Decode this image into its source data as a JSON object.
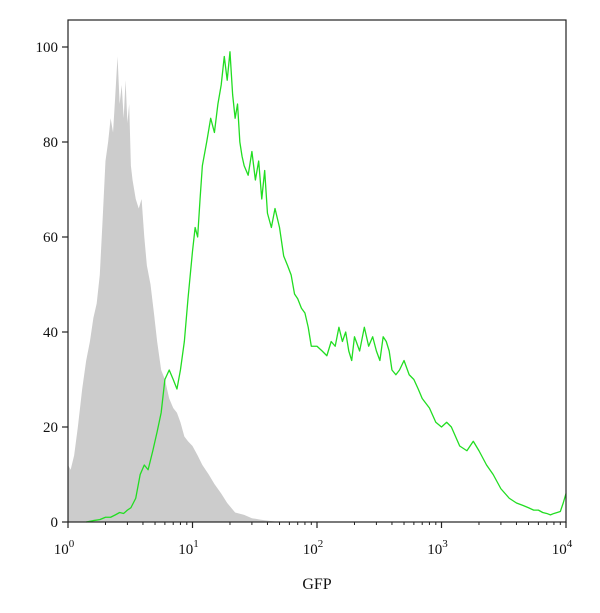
{
  "chart_data": {
    "type": "area",
    "xlabel": "GFP",
    "ylabel": "",
    "x_scale": "log",
    "xlim": [
      1,
      10000
    ],
    "ylim": [
      0,
      100
    ],
    "grid": false,
    "legend": "none",
    "y_ticks": [
      {
        "value": 0,
        "label": "0"
      },
      {
        "value": 20,
        "label": "20"
      },
      {
        "value": 40,
        "label": "40"
      },
      {
        "value": 60,
        "label": "60"
      },
      {
        "value": 80,
        "label": "80"
      },
      {
        "value": 100,
        "label": "100"
      }
    ],
    "x_ticks": [
      {
        "value": 1,
        "base": "10",
        "exp": "0"
      },
      {
        "value": 10,
        "base": "10",
        "exp": "1"
      },
      {
        "value": 100,
        "base": "10",
        "exp": "2"
      },
      {
        "value": 1000,
        "base": "10",
        "exp": "3"
      },
      {
        "value": 10000,
        "base": "10",
        "exp": "4"
      }
    ],
    "series": [
      {
        "style": "filled",
        "color": "#cccccc",
        "x": [
          1.0,
          1.05,
          1.12,
          1.2,
          1.3,
          1.4,
          1.5,
          1.6,
          1.7,
          1.8,
          1.9,
          2.0,
          2.1,
          2.2,
          2.3,
          2.4,
          2.5,
          2.6,
          2.7,
          2.8,
          2.9,
          3.0,
          3.1,
          3.2,
          3.3,
          3.5,
          3.7,
          3.9,
          4.1,
          4.3,
          4.6,
          4.9,
          5.2,
          5.6,
          6.0,
          6.5,
          7.0,
          7.5,
          8.0,
          8.6,
          9.2,
          10.0,
          11.0,
          12.0,
          13.5,
          15.0,
          17.0,
          19.0,
          22.0,
          26.0,
          30.0,
          35.0,
          40.0,
          50.0
        ],
        "values": [
          12.0,
          11.0,
          14.0,
          20.0,
          28.0,
          34.0,
          38.0,
          43.0,
          46.0,
          52.0,
          64.0,
          76.0,
          80.0,
          85.0,
          82.0,
          90.0,
          98.0,
          88.0,
          92.0,
          85.0,
          93.0,
          84.0,
          88.0,
          75.0,
          72.0,
          68.0,
          66.0,
          68.0,
          60.0,
          54.0,
          50.0,
          44.0,
          38.0,
          32.0,
          30.0,
          26.0,
          24.0,
          23.0,
          21.0,
          18.0,
          17.0,
          16.0,
          14.0,
          12.0,
          10.0,
          8.0,
          6.0,
          4.0,
          2.0,
          1.5,
          0.8,
          0.5,
          0.3,
          0.0
        ]
      },
      {
        "style": "line",
        "color": "#22dd22",
        "x": [
          1.4,
          1.6,
          1.8,
          2.0,
          2.2,
          2.4,
          2.6,
          2.8,
          3.0,
          3.2,
          3.5,
          3.8,
          4.1,
          4.4,
          4.8,
          5.2,
          5.6,
          6.0,
          6.5,
          7.0,
          7.5,
          8.0,
          8.6,
          9.2,
          10.0,
          10.5,
          11.0,
          11.5,
          12.0,
          13.0,
          14.0,
          15.0,
          16.0,
          17.0,
          18.0,
          19.0,
          20.0,
          21.0,
          22.0,
          23.0,
          24.0,
          25.0,
          26.0,
          28.0,
          30.0,
          32.0,
          34.0,
          36.0,
          38.0,
          40.0,
          43.0,
          46.0,
          50.0,
          54.0,
          58.0,
          62.0,
          66.0,
          70.0,
          75.0,
          80.0,
          85.0,
          90.0,
          100.0,
          110.0,
          120.0,
          130.0,
          140.0,
          150.0,
          160.0,
          170.0,
          180.0,
          190.0,
          200.0,
          220.0,
          240.0,
          260.0,
          280.0,
          300.0,
          320.0,
          340.0,
          360.0,
          380.0,
          400.0,
          430.0,
          460.0,
          500.0,
          550.0,
          600.0,
          650.0,
          700.0,
          800.0,
          900.0,
          1000.0,
          1100.0,
          1200.0,
          1400.0,
          1600.0,
          1800.0,
          2000.0,
          2300.0,
          2600.0,
          3000.0,
          3500.0,
          4000.0,
          4500.0,
          5000.0,
          5500.0,
          6000.0,
          6500.0,
          7000.0,
          7500.0,
          8000.0,
          8500.0,
          9000.0,
          9500.0,
          10000.0
        ],
        "values": [
          0.0,
          0.3,
          0.5,
          1.0,
          1.0,
          1.5,
          2.0,
          1.8,
          2.5,
          3.0,
          5.0,
          10.0,
          12.0,
          11.0,
          15.0,
          19.0,
          23.0,
          30.0,
          32.0,
          30.0,
          28.0,
          32.0,
          38.0,
          47.0,
          57.0,
          62.0,
          60.0,
          68.0,
          75.0,
          80.0,
          85.0,
          82.0,
          88.0,
          92.0,
          98.0,
          93.0,
          99.0,
          90.0,
          85.0,
          88.0,
          80.0,
          77.0,
          75.0,
          73.0,
          78.0,
          72.0,
          76.0,
          68.0,
          74.0,
          65.0,
          62.0,
          66.0,
          62.0,
          56.0,
          54.0,
          52.0,
          48.0,
          47.0,
          45.0,
          44.0,
          41.0,
          37.0,
          37.0,
          36.0,
          35.0,
          38.0,
          37.0,
          41.0,
          38.0,
          40.0,
          36.0,
          34.0,
          39.0,
          36.0,
          41.0,
          37.0,
          39.0,
          36.0,
          34.0,
          39.0,
          38.0,
          36.0,
          32.0,
          31.0,
          32.0,
          34.0,
          31.0,
          30.0,
          28.0,
          26.0,
          24.0,
          21.0,
          20.0,
          21.0,
          20.0,
          16.0,
          15.0,
          17.0,
          15.0,
          12.0,
          10.0,
          7.0,
          5.0,
          4.0,
          3.5,
          3.0,
          2.5,
          2.5,
          2.0,
          1.8,
          1.5,
          1.8,
          2.0,
          2.2,
          4.0,
          6.0
        ]
      }
    ]
  }
}
